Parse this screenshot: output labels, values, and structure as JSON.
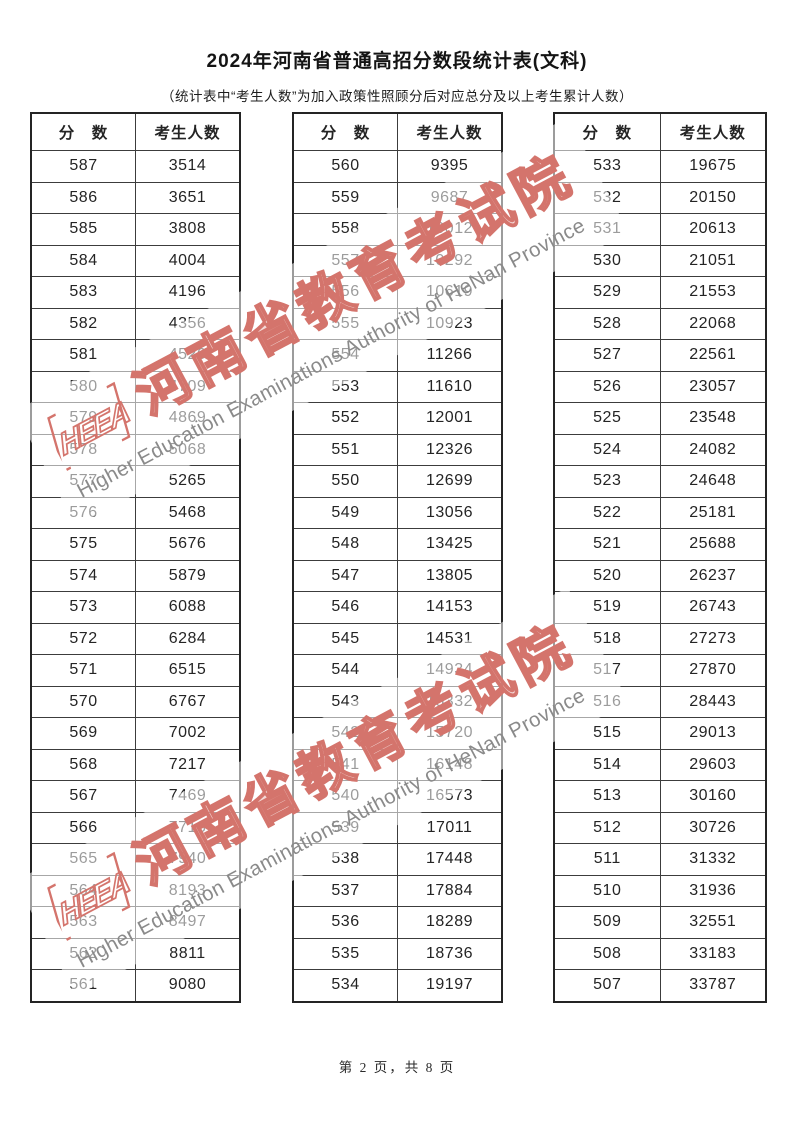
{
  "page": {
    "title": "2024年河南省普通高招分数段统计表(文科)",
    "subtitle": "（统计表中“考生人数”为加入政策性照顾分后对应总分及以上考生累计人数）",
    "footer": "第 2 页，共 8 页"
  },
  "table_headers": {
    "score": "分　数",
    "count": "考生人数"
  },
  "tables": [
    {
      "rows": [
        [
          587,
          3514
        ],
        [
          586,
          3651
        ],
        [
          585,
          3808
        ],
        [
          584,
          4004
        ],
        [
          583,
          4196
        ],
        [
          582,
          4356
        ],
        [
          581,
          4526
        ],
        [
          580,
          4709
        ],
        [
          579,
          4869
        ],
        [
          578,
          5068
        ],
        [
          577,
          5265
        ],
        [
          576,
          5468
        ],
        [
          575,
          5676
        ],
        [
          574,
          5879
        ],
        [
          573,
          6088
        ],
        [
          572,
          6284
        ],
        [
          571,
          6515
        ],
        [
          570,
          6767
        ],
        [
          569,
          7002
        ],
        [
          568,
          7217
        ],
        [
          567,
          7469
        ],
        [
          566,
          7718
        ],
        [
          565,
          7940
        ],
        [
          564,
          8193
        ],
        [
          563,
          8497
        ],
        [
          562,
          8811
        ],
        [
          561,
          9080
        ]
      ]
    },
    {
      "rows": [
        [
          560,
          9395
        ],
        [
          559,
          9687
        ],
        [
          558,
          10012
        ],
        [
          557,
          10292
        ],
        [
          556,
          10619
        ],
        [
          555,
          10923
        ],
        [
          554,
          11266
        ],
        [
          553,
          11610
        ],
        [
          552,
          12001
        ],
        [
          551,
          12326
        ],
        [
          550,
          12699
        ],
        [
          549,
          13056
        ],
        [
          548,
          13425
        ],
        [
          547,
          13805
        ],
        [
          546,
          14153
        ],
        [
          545,
          14531
        ],
        [
          544,
          14934
        ],
        [
          543,
          15332
        ],
        [
          542,
          15720
        ],
        [
          541,
          16148
        ],
        [
          540,
          16573
        ],
        [
          539,
          17011
        ],
        [
          538,
          17448
        ],
        [
          537,
          17884
        ],
        [
          536,
          18289
        ],
        [
          535,
          18736
        ],
        [
          534,
          19197
        ]
      ]
    },
    {
      "rows": [
        [
          533,
          19675
        ],
        [
          532,
          20150
        ],
        [
          531,
          20613
        ],
        [
          530,
          21051
        ],
        [
          529,
          21553
        ],
        [
          528,
          22068
        ],
        [
          527,
          22561
        ],
        [
          526,
          23057
        ],
        [
          525,
          23548
        ],
        [
          524,
          24082
        ],
        [
          523,
          24648
        ],
        [
          522,
          25181
        ],
        [
          521,
          25688
        ],
        [
          520,
          26237
        ],
        [
          519,
          26743
        ],
        [
          518,
          27273
        ],
        [
          517,
          27870
        ],
        [
          516,
          28443
        ],
        [
          515,
          29013
        ],
        [
          514,
          29603
        ],
        [
          513,
          30160
        ],
        [
          512,
          30726
        ],
        [
          511,
          31332
        ],
        [
          510,
          31936
        ],
        [
          509,
          32551
        ],
        [
          508,
          33183
        ],
        [
          507,
          33787
        ]
      ]
    }
  ],
  "watermark": {
    "logo_text": "HEEA",
    "cn_text": "河南省教育考试院",
    "en_text": "Higher Education Examinations Authority of HeNan Province",
    "accent_color": "#d4746c",
    "en_color": "#8a8a8a"
  }
}
